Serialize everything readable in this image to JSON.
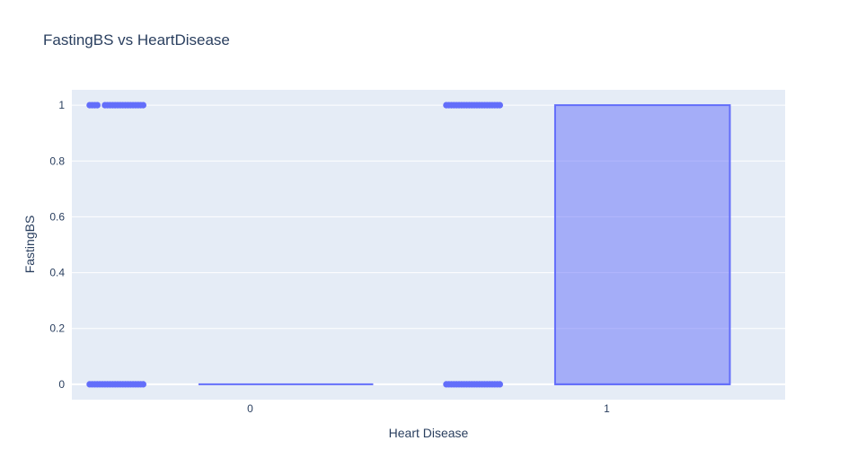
{
  "chart_data": {
    "type": "box",
    "title": "FastingBS vs HeartDisease",
    "xlabel": "Heart Disease",
    "ylabel": "FastingBS",
    "categories": [
      "0",
      "1"
    ],
    "ylim": [
      -0.055,
      1.055
    ],
    "y_ticks": [
      0,
      0.2,
      0.4,
      0.6,
      0.8,
      1
    ],
    "y_tick_labels": [
      "0",
      "0.2",
      "0.4",
      "0.6",
      "0.8",
      "1"
    ],
    "grid": true,
    "legend": "none",
    "boxpoints": "all",
    "boxes": [
      {
        "category": "0",
        "min": 0,
        "q1": 0,
        "median": 0,
        "q3": 0,
        "max": 0,
        "outliers_at_1": true
      },
      {
        "category": "1",
        "min": 0,
        "q1": 0,
        "median": 0,
        "q3": 1,
        "max": 1
      }
    ],
    "points": [
      {
        "category": "0",
        "y": 0,
        "jitter_spread": "wide"
      },
      {
        "category": "0",
        "y": 1,
        "jitter_spread": "wide"
      },
      {
        "category": "1",
        "y": 0,
        "jitter_spread": "wide"
      },
      {
        "category": "1",
        "y": 1,
        "jitter_spread": "wide"
      }
    ],
    "colors": {
      "series": "#636efa",
      "box_fill": "rgba(99,110,250,0.5)",
      "plot_bg": "#e5ecf6",
      "grid": "#ffffff",
      "text": "#2a3f5f"
    }
  }
}
